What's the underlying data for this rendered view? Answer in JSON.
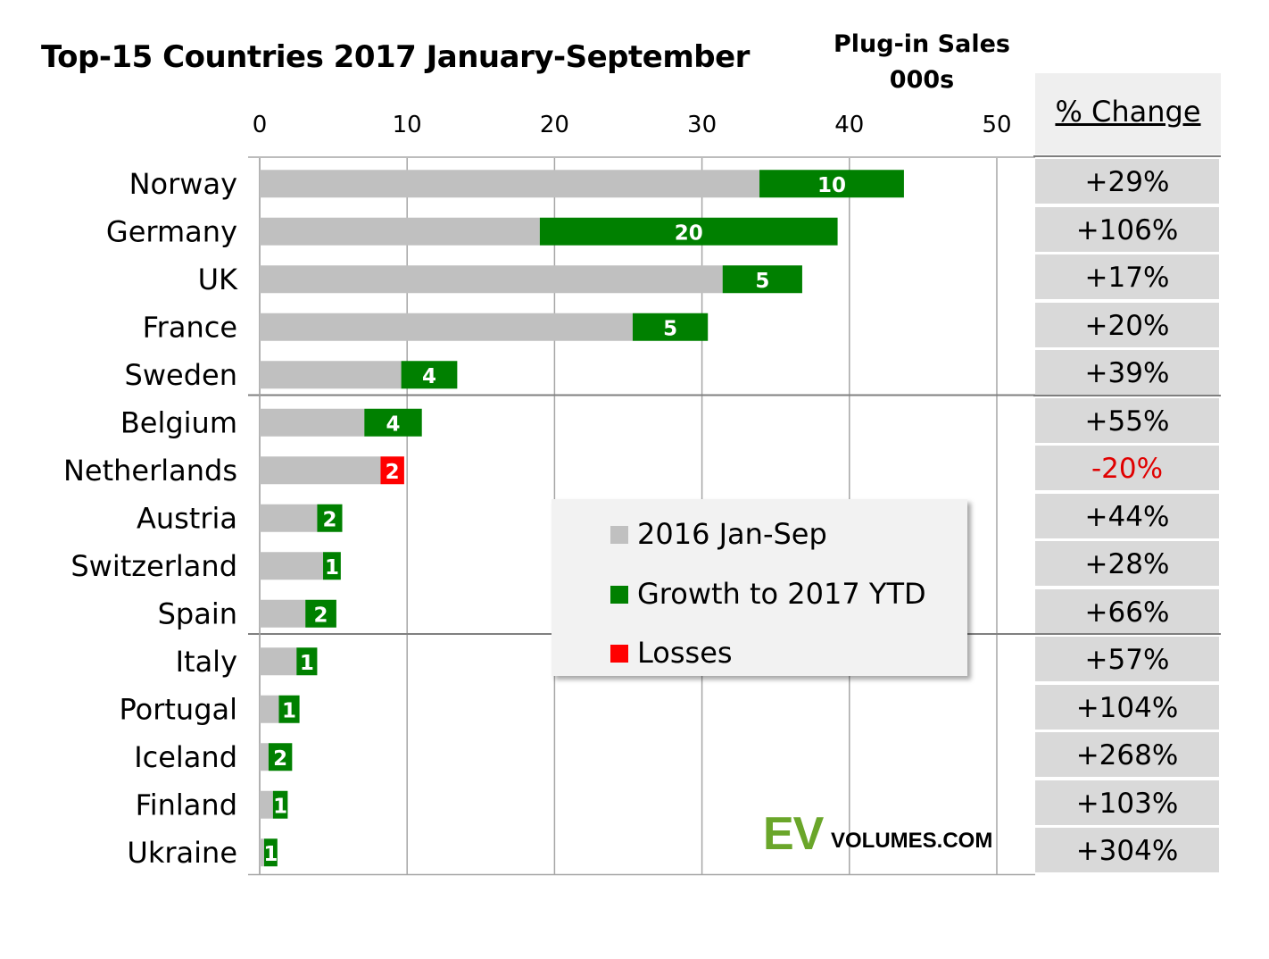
{
  "title": "Top-15 Countries 2017 January-September",
  "units": {
    "line1": "Plug-in Sales",
    "line2": "000s"
  },
  "pct_header": "% Change",
  "colors": {
    "base": "#c0c0c0",
    "growth": "#008000",
    "loss": "#ff0000",
    "negative_text": "#e00000"
  },
  "chart_data": {
    "type": "bar",
    "orientation": "horizontal",
    "stacked": true,
    "xlim": [
      0,
      50
    ],
    "xticks": [
      "0",
      "10",
      "20",
      "30",
      "40",
      "50"
    ],
    "grid": true,
    "categories": [
      "Norway",
      "Germany",
      "UK",
      "France",
      "Sweden",
      "Belgium",
      "Netherlands",
      "Austria",
      "Switzerland",
      "Spain",
      "Italy",
      "Portugal",
      "Iceland",
      "Finland",
      "Ukraine"
    ],
    "series": [
      {
        "name": "2016 Jan-Sep",
        "values": [
          33.9,
          19.0,
          31.4,
          25.3,
          9.6,
          7.1,
          8.2,
          3.9,
          4.3,
          3.1,
          2.5,
          1.3,
          0.6,
          0.9,
          0.3
        ]
      },
      {
        "name": "Growth to 2017 YTD",
        "values": [
          9.8,
          20.2,
          5.4,
          5.1,
          3.8,
          3.9,
          0,
          1.7,
          1.2,
          2.1,
          1.4,
          1.4,
          1.6,
          1.0,
          0.9
        ]
      },
      {
        "name": "Losses",
        "values": [
          0,
          0,
          0,
          0,
          0,
          0,
          1.6,
          0,
          0,
          0,
          0,
          0,
          0,
          0,
          0
        ]
      }
    ],
    "bar_labels": [
      "10",
      "20",
      "5",
      "5",
      "4",
      "4",
      "2",
      "2",
      "1",
      "2",
      "1",
      "1",
      "2",
      "1",
      "1"
    ],
    "pct_change": [
      "+29%",
      "+106%",
      "+17%",
      "+20%",
      "+39%",
      "+55%",
      "-20%",
      "+44%",
      "+28%",
      "+66%",
      "+57%",
      "+104%",
      "+268%",
      "+103%",
      "+304%"
    ],
    "negative_flags": [
      false,
      false,
      false,
      false,
      false,
      false,
      true,
      false,
      false,
      false,
      false,
      false,
      false,
      false,
      false
    ],
    "legend_position": "center-right"
  },
  "legend": [
    {
      "label": "2016 Jan-Sep",
      "color": "#c0c0c0"
    },
    {
      "label": "Growth to 2017 YTD",
      "color": "#008000"
    },
    {
      "label": "Losses",
      "color": "#ff0000"
    }
  ],
  "logo": {
    "ev": "EV",
    "rest": "VOLUMES.COM"
  }
}
